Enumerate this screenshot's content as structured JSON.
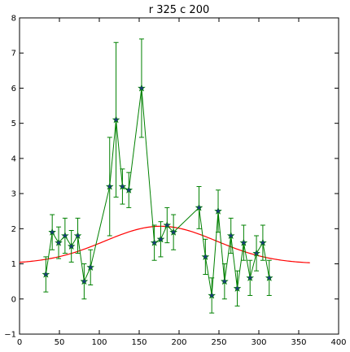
{
  "chart_data": {
    "type": "line",
    "title": "r 325 c 200",
    "xlabel": "",
    "ylabel": "",
    "xlim": [
      0,
      400
    ],
    "ylim": [
      -1,
      8
    ],
    "xticks": [
      0,
      50,
      100,
      150,
      200,
      250,
      300,
      350,
      400
    ],
    "yticks": [
      -1,
      0,
      1,
      2,
      3,
      4,
      5,
      6,
      7,
      8
    ],
    "grid": false,
    "series": [
      {
        "style": "errorbar-line-star",
        "color": "#008000",
        "marker_color": "#1a3a7a",
        "x": [
          33,
          41,
          49,
          57,
          65,
          73,
          81,
          89,
          113,
          121,
          129,
          137,
          153,
          169,
          177,
          185,
          193,
          225,
          233,
          241,
          249,
          257,
          265,
          273,
          281,
          289,
          297,
          305,
          313
        ],
        "y": [
          0.7,
          1.9,
          1.6,
          1.8,
          1.5,
          1.8,
          0.5,
          0.9,
          3.2,
          5.1,
          3.2,
          3.1,
          6.0,
          1.6,
          1.7,
          2.1,
          1.9,
          2.6,
          1.2,
          0.1,
          2.5,
          0.5,
          1.8,
          0.3,
          1.6,
          0.6,
          1.3,
          1.6,
          0.6
        ],
        "yerr": [
          0.5,
          0.5,
          0.45,
          0.5,
          0.45,
          0.5,
          0.5,
          0.5,
          1.4,
          2.2,
          0.5,
          0.5,
          1.4,
          0.5,
          0.5,
          0.5,
          0.5,
          0.6,
          0.5,
          0.5,
          0.6,
          0.5,
          0.5,
          0.5,
          0.5,
          0.5,
          0.5,
          0.5,
          0.5
        ]
      },
      {
        "style": "line",
        "color": "#ff0000",
        "model": {
          "form": "gaussian-plus-constant",
          "baseline": 1.0,
          "amplitude": 1.07,
          "center": 177,
          "sigma": 70
        },
        "x_range": [
          0,
          365
        ]
      }
    ]
  }
}
